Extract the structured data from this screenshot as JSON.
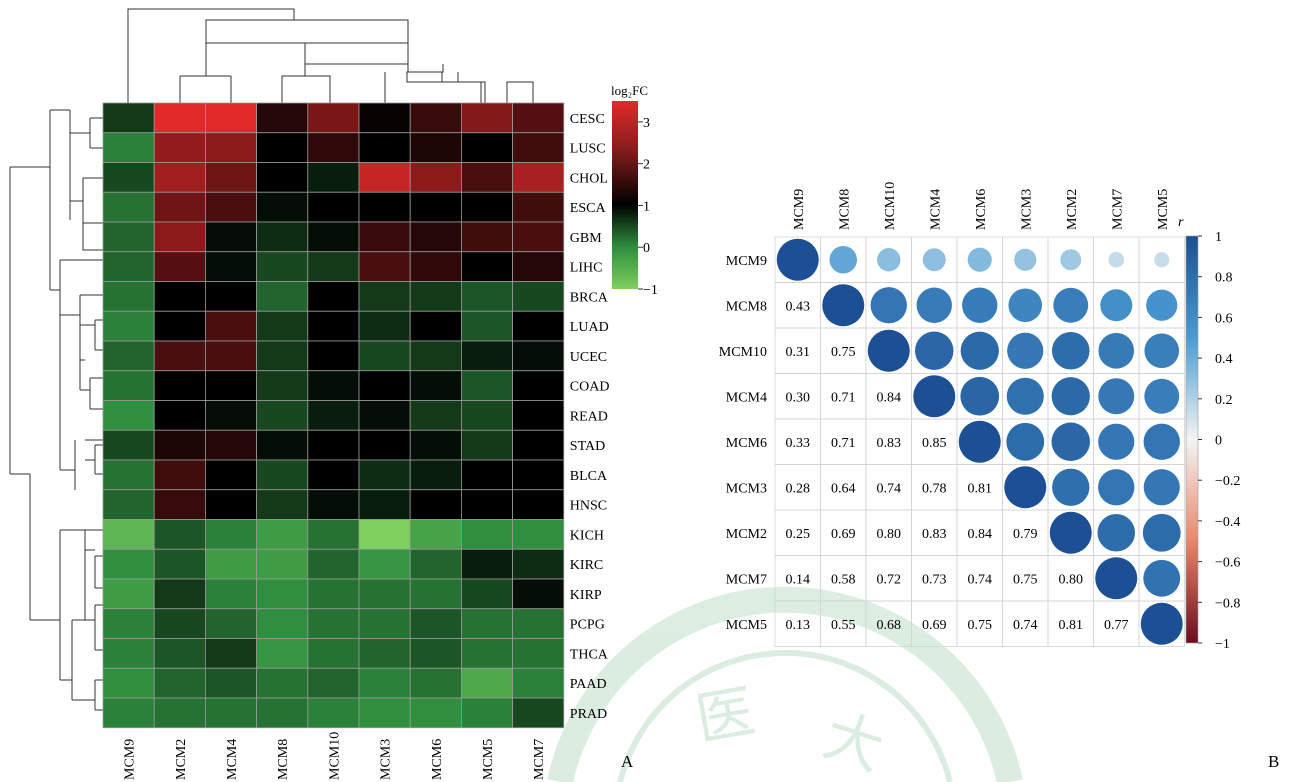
{
  "figure": {
    "panel_labels": [
      "A",
      "B"
    ],
    "watermark_text": "医 大"
  },
  "chart_data": [
    {
      "type": "heatmap",
      "panel": "A",
      "title": "",
      "colorbar_title": "log₂FC",
      "colorbar_ticks": [
        3,
        2,
        1,
        0,
        -1
      ],
      "colorbar_labels": [
        "3",
        "2",
        "1",
        "0",
        "−1"
      ],
      "value_range": [
        -1,
        3.5
      ],
      "colors": {
        "low": "#7ed05e",
        "zero_green": "#2f8f3f",
        "mid": "#000000",
        "high": "#e02a2a"
      },
      "columns": [
        "MCM9",
        "MCM2",
        "MCM4",
        "MCM8",
        "MCM10",
        "MCM3",
        "MCM6",
        "MCM5",
        "MCM7"
      ],
      "rows": [
        "CESC",
        "LUSC",
        "CHOL",
        "ESCA",
        "GBM",
        "LIHC",
        "BRCA",
        "LUAD",
        "UCEC",
        "COAD",
        "READ",
        "STAD",
        "BLCA",
        "HNSC",
        "KICH",
        "KIRC",
        "KIRP",
        "PCPG",
        "THCA",
        "PAAD",
        "PRAD"
      ],
      "values": [
        [
          0.6,
          3.4,
          3.4,
          1.4,
          2.3,
          1.1,
          1.6,
          2.4,
          1.9
        ],
        [
          0.1,
          2.6,
          2.5,
          1.0,
          1.5,
          1.0,
          1.3,
          1.0,
          1.7
        ],
        [
          0.5,
          2.7,
          2.2,
          1.0,
          0.8,
          3.1,
          2.5,
          1.8,
          2.8
        ],
        [
          0.2,
          2.2,
          1.8,
          0.9,
          1.0,
          1.0,
          1.0,
          1.0,
          1.7
        ],
        [
          0.3,
          2.5,
          0.9,
          0.7,
          0.9,
          1.6,
          1.4,
          1.7,
          1.8
        ],
        [
          0.3,
          1.9,
          0.9,
          0.5,
          0.6,
          1.8,
          1.5,
          1.0,
          1.4
        ],
        [
          0.2,
          1.0,
          1.0,
          0.3,
          1.0,
          0.6,
          0.6,
          0.4,
          0.5
        ],
        [
          0.1,
          1.0,
          1.8,
          0.6,
          1.0,
          0.7,
          1.0,
          0.4,
          1.0
        ],
        [
          0.3,
          1.8,
          1.8,
          0.6,
          1.0,
          0.5,
          0.6,
          0.8,
          0.9
        ],
        [
          0.2,
          1.0,
          1.0,
          0.6,
          0.9,
          1.0,
          0.9,
          0.4,
          1.0
        ],
        [
          0.0,
          1.0,
          0.9,
          0.5,
          0.8,
          0.9,
          0.6,
          0.5,
          1.0
        ],
        [
          0.5,
          1.3,
          1.4,
          0.9,
          1.0,
          1.0,
          0.9,
          0.6,
          1.0
        ],
        [
          0.2,
          1.7,
          1.0,
          0.5,
          1.0,
          0.7,
          0.8,
          1.0,
          1.0
        ],
        [
          0.3,
          1.6,
          1.0,
          0.6,
          0.9,
          0.8,
          1.0,
          1.0,
          1.0
        ],
        [
          -0.6,
          0.4,
          0.1,
          -0.2,
          0.2,
          -1.0,
          -0.3,
          0.0,
          0.0
        ],
        [
          0.0,
          0.4,
          -0.2,
          -0.2,
          0.3,
          -0.1,
          0.3,
          0.8,
          0.7
        ],
        [
          -0.2,
          0.6,
          0.1,
          0.0,
          0.2,
          0.2,
          0.2,
          0.5,
          0.9
        ],
        [
          0.1,
          0.5,
          0.3,
          0.0,
          0.2,
          0.2,
          0.4,
          0.2,
          0.2
        ],
        [
          0.1,
          0.4,
          0.6,
          -0.1,
          0.2,
          0.3,
          0.4,
          0.2,
          0.2
        ],
        [
          0.0,
          0.3,
          0.4,
          0.2,
          0.3,
          0.1,
          0.2,
          -0.4,
          0.1
        ],
        [
          0.1,
          0.2,
          0.2,
          0.2,
          0.1,
          0.0,
          0.0,
          0.1,
          0.5
        ]
      ]
    },
    {
      "type": "heatmap",
      "panel": "B",
      "title": "",
      "colorbar_title": "r",
      "colorbar_ticks": [
        1,
        0.8,
        0.6,
        0.4,
        0.2,
        0,
        -0.2,
        -0.4,
        -0.6,
        -0.8,
        -1
      ],
      "colorbar_labels": [
        "1",
        "0.8",
        "0.6",
        "0.4",
        "0.2",
        "0",
        "−0.2",
        "−0.4",
        "−0.6",
        "−0.8",
        "−1"
      ],
      "value_range": [
        -1,
        1
      ],
      "colors": {
        "positive": "#1c4f93",
        "neutral": "#f4f4f4",
        "negative": "#6b0d1f"
      },
      "labels": [
        "MCM9",
        "MCM8",
        "MCM10",
        "MCM4",
        "MCM6",
        "MCM3",
        "MCM2",
        "MCM7",
        "MCM5"
      ],
      "lower_triangle_text": [
        [],
        [
          "0.43"
        ],
        [
          "0.31",
          "0.75"
        ],
        [
          "0.30",
          "0.71",
          "0.84"
        ],
        [
          "0.33",
          "0.71",
          "0.83",
          "0.85"
        ],
        [
          "0.28",
          "0.64",
          "0.74",
          "0.78",
          "0.81"
        ],
        [
          "0.25",
          "0.69",
          "0.80",
          "0.83",
          "0.84",
          "0.79"
        ],
        [
          "0.14",
          "0.58",
          "0.72",
          "0.73",
          "0.74",
          "0.75",
          "0.80"
        ],
        [
          "0.13",
          "0.55",
          "0.68",
          "0.69",
          "0.75",
          "0.74",
          "0.81",
          "0.77"
        ]
      ],
      "matrix": [
        [
          1.0,
          0.43,
          0.31,
          0.3,
          0.33,
          0.28,
          0.25,
          0.14,
          0.13
        ],
        [
          0.43,
          1.0,
          0.75,
          0.71,
          0.71,
          0.64,
          0.69,
          0.58,
          0.55
        ],
        [
          0.31,
          0.75,
          1.0,
          0.84,
          0.83,
          0.74,
          0.8,
          0.72,
          0.68
        ],
        [
          0.3,
          0.71,
          0.84,
          1.0,
          0.85,
          0.78,
          0.83,
          0.73,
          0.69
        ],
        [
          0.33,
          0.71,
          0.83,
          0.85,
          1.0,
          0.81,
          0.84,
          0.74,
          0.75
        ],
        [
          0.28,
          0.64,
          0.74,
          0.78,
          0.81,
          1.0,
          0.79,
          0.75,
          0.74
        ],
        [
          0.25,
          0.69,
          0.8,
          0.83,
          0.84,
          0.79,
          1.0,
          0.8,
          0.81
        ],
        [
          0.14,
          0.58,
          0.72,
          0.73,
          0.74,
          0.75,
          0.8,
          1.0,
          0.77
        ],
        [
          0.13,
          0.55,
          0.68,
          0.69,
          0.75,
          0.74,
          0.81,
          0.77,
          1.0
        ]
      ]
    }
  ]
}
